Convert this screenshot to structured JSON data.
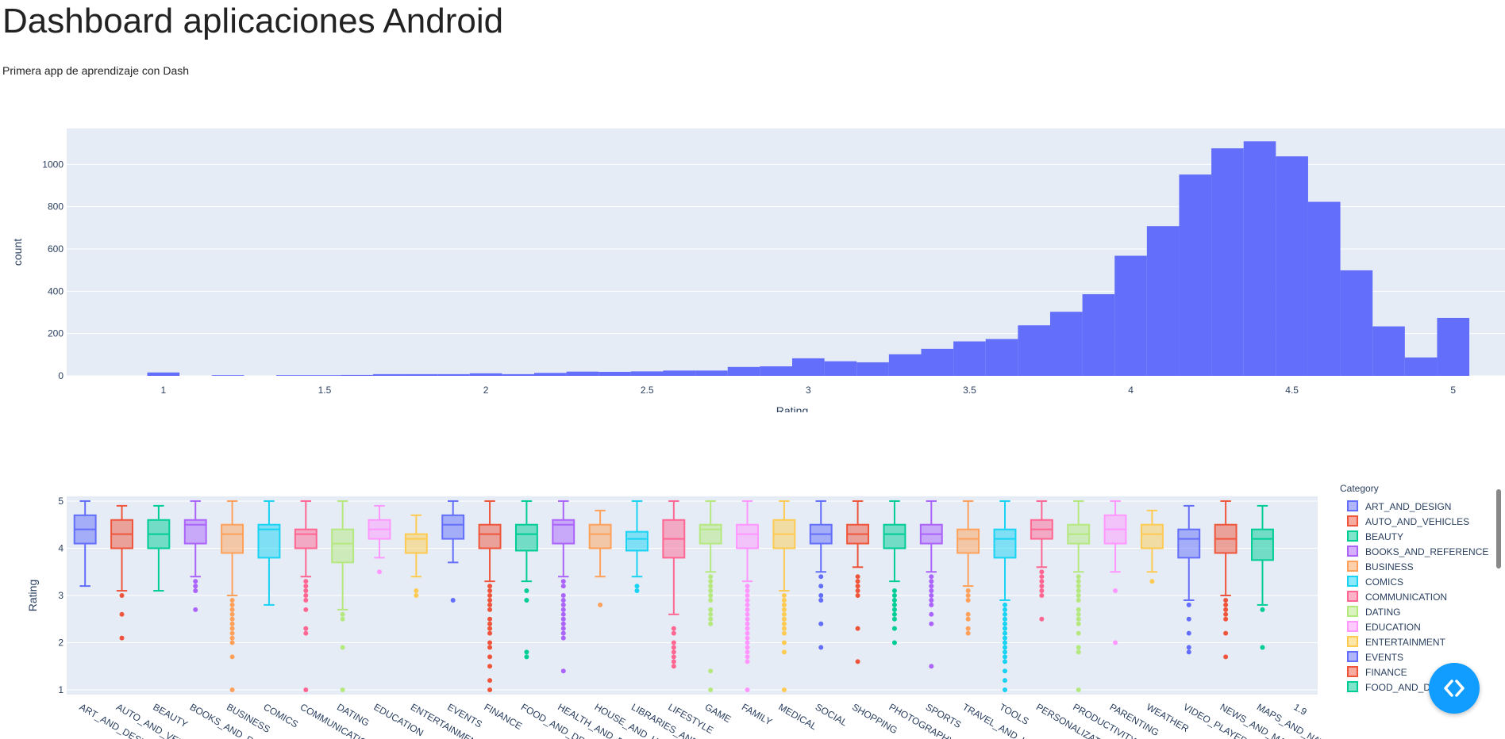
{
  "page": {
    "title": "Dashboard aplicaciones Android",
    "subtitle": "Primera app de aprendizaje con Dash"
  },
  "colors": {
    "hist_bar": "#636efa",
    "plot_bg": "#e5ecf6",
    "grid": "#ffffff",
    "axis_text": "#2a3f5f",
    "toggle_button": "#119dff"
  },
  "chart_data": [
    {
      "type": "bar",
      "subtype": "histogram",
      "title": "",
      "xlabel": "Rating",
      "ylabel": "count",
      "xlim": [
        0.7,
        5.2
      ],
      "ylim": [
        0,
        1170
      ],
      "xticks": [
        "1",
        "1.5",
        "2",
        "2.5",
        "3",
        "3.5",
        "4",
        "4.5",
        "5"
      ],
      "yticks": [
        "0",
        "200",
        "400",
        "600",
        "800",
        "1000"
      ],
      "bin_width": 0.1,
      "bins": [
        {
          "x0": 0.95,
          "x1": 1.05,
          "count": 16
        },
        {
          "x0": 1.15,
          "x1": 1.25,
          "count": 3
        },
        {
          "x0": 1.35,
          "x1": 1.45,
          "count": 3
        },
        {
          "x0": 1.45,
          "x1": 1.55,
          "count": 3
        },
        {
          "x0": 1.55,
          "x1": 1.65,
          "count": 4
        },
        {
          "x0": 1.65,
          "x1": 1.75,
          "count": 8
        },
        {
          "x0": 1.75,
          "x1": 1.85,
          "count": 8
        },
        {
          "x0": 1.85,
          "x1": 1.95,
          "count": 8
        },
        {
          "x0": 1.95,
          "x1": 2.05,
          "count": 12
        },
        {
          "x0": 2.05,
          "x1": 2.15,
          "count": 8
        },
        {
          "x0": 2.15,
          "x1": 2.25,
          "count": 14
        },
        {
          "x0": 2.25,
          "x1": 2.35,
          "count": 20
        },
        {
          "x0": 2.35,
          "x1": 2.45,
          "count": 19
        },
        {
          "x0": 2.45,
          "x1": 2.55,
          "count": 21
        },
        {
          "x0": 2.55,
          "x1": 2.65,
          "count": 25
        },
        {
          "x0": 2.65,
          "x1": 2.75,
          "count": 25
        },
        {
          "x0": 2.75,
          "x1": 2.85,
          "count": 42
        },
        {
          "x0": 2.85,
          "x1": 2.95,
          "count": 45
        },
        {
          "x0": 2.95,
          "x1": 3.05,
          "count": 83
        },
        {
          "x0": 3.05,
          "x1": 3.15,
          "count": 69
        },
        {
          "x0": 3.15,
          "x1": 3.25,
          "count": 64
        },
        {
          "x0": 3.25,
          "x1": 3.35,
          "count": 102
        },
        {
          "x0": 3.35,
          "x1": 3.45,
          "count": 128
        },
        {
          "x0": 3.45,
          "x1": 3.55,
          "count": 163
        },
        {
          "x0": 3.55,
          "x1": 3.65,
          "count": 174
        },
        {
          "x0": 3.65,
          "x1": 3.75,
          "count": 239
        },
        {
          "x0": 3.75,
          "x1": 3.85,
          "count": 303
        },
        {
          "x0": 3.85,
          "x1": 3.95,
          "count": 386
        },
        {
          "x0": 3.95,
          "x1": 4.05,
          "count": 568
        },
        {
          "x0": 4.05,
          "x1": 4.15,
          "count": 708
        },
        {
          "x0": 4.15,
          "x1": 4.25,
          "count": 952
        },
        {
          "x0": 4.25,
          "x1": 4.35,
          "count": 1076
        },
        {
          "x0": 4.35,
          "x1": 4.45,
          "count": 1109
        },
        {
          "x0": 4.45,
          "x1": 4.55,
          "count": 1038
        },
        {
          "x0": 4.55,
          "x1": 4.65,
          "count": 823
        },
        {
          "x0": 4.65,
          "x1": 4.75,
          "count": 499
        },
        {
          "x0": 4.75,
          "x1": 4.85,
          "count": 234
        },
        {
          "x0": 4.85,
          "x1": 4.95,
          "count": 87
        },
        {
          "x0": 4.95,
          "x1": 5.05,
          "count": 274
        }
      ]
    },
    {
      "type": "box",
      "title": "",
      "xlabel": "",
      "ylabel": "Rating",
      "ylim": [
        0.9,
        5.1
      ],
      "yticks": [
        "1",
        "2",
        "3",
        "4",
        "5"
      ],
      "legend_title": "Category",
      "legend_position": "right",
      "categories": [
        {
          "name": "ART_AND_DESIGN",
          "label": "ART_AND_DESIG",
          "color": "#636efa",
          "q1": 4.1,
          "median": 4.4,
          "q3": 4.7,
          "lo": 3.2,
          "hi": 5.0,
          "outliers": []
        },
        {
          "name": "AUTO_AND_VEHICLES",
          "label": "AUTO_AND_VEHIC",
          "color": "#ef553b",
          "q1": 4.0,
          "median": 4.3,
          "q3": 4.6,
          "lo": 3.1,
          "hi": 4.9,
          "outliers": [
            3.0,
            2.6,
            2.1
          ]
        },
        {
          "name": "BEAUTY",
          "label": "BEAUTY",
          "color": "#00cc96",
          "q1": 4.0,
          "median": 4.3,
          "q3": 4.6,
          "lo": 3.1,
          "hi": 4.9,
          "outliers": []
        },
        {
          "name": "BOOKS_AND_REFERENCE",
          "label": "BOOKS_AND_REF",
          "color": "#ab63fa",
          "q1": 4.1,
          "median": 4.5,
          "q3": 4.6,
          "lo": 3.4,
          "hi": 5.0,
          "outliers": [
            3.3,
            3.2,
            3.1,
            2.7
          ]
        },
        {
          "name": "BUSINESS",
          "label": "BUSINESS",
          "color": "#ffa15a",
          "q1": 3.9,
          "median": 4.3,
          "q3": 4.5,
          "lo": 3.0,
          "hi": 5.0,
          "outliers": [
            2.9,
            2.8,
            2.7,
            2.6,
            2.5,
            2.4,
            2.3,
            2.2,
            2.1,
            2.0,
            1.7,
            1.0
          ]
        },
        {
          "name": "COMICS",
          "label": "COMICS",
          "color": "#19d3f3",
          "q1": 3.8,
          "median": 4.4,
          "q3": 4.5,
          "lo": 2.8,
          "hi": 5.0,
          "outliers": []
        },
        {
          "name": "COMMUNICATION",
          "label": "COMMUNICATION",
          "color": "#ff6692",
          "q1": 4.0,
          "median": 4.3,
          "q3": 4.4,
          "lo": 3.4,
          "hi": 5.0,
          "outliers": [
            3.3,
            3.2,
            3.1,
            3.0,
            2.9,
            2.7,
            2.3,
            2.2,
            1.0
          ]
        },
        {
          "name": "DATING",
          "label": "DATING",
          "color": "#b6e880",
          "q1": 3.7,
          "median": 4.1,
          "q3": 4.4,
          "lo": 2.7,
          "hi": 5.0,
          "outliers": [
            2.6,
            2.5,
            1.9,
            1.0
          ]
        },
        {
          "name": "EDUCATION",
          "label": "EDUCATION",
          "color": "#ff97ff",
          "q1": 4.2,
          "median": 4.4,
          "q3": 4.6,
          "lo": 3.8,
          "hi": 4.9,
          "outliers": [
            3.5
          ]
        },
        {
          "name": "ENTERTAINMENT",
          "label": "ENTERTAINMENT",
          "color": "#fecb52",
          "q1": 3.9,
          "median": 4.2,
          "q3": 4.3,
          "lo": 3.4,
          "hi": 4.7,
          "outliers": [
            3.1,
            3.0
          ]
        },
        {
          "name": "EVENTS",
          "label": "EVENTS",
          "color": "#636efa",
          "q1": 4.2,
          "median": 4.5,
          "q3": 4.7,
          "lo": 3.7,
          "hi": 5.0,
          "outliers": [
            2.9
          ]
        },
        {
          "name": "FINANCE",
          "label": "FINANCE",
          "color": "#ef553b",
          "q1": 4.0,
          "median": 4.3,
          "q3": 4.5,
          "lo": 3.3,
          "hi": 5.0,
          "outliers": [
            3.2,
            3.1,
            3.0,
            2.9,
            2.8,
            2.7,
            2.5,
            2.4,
            2.3,
            2.2,
            2.0,
            1.9,
            1.7,
            1.5,
            1.2,
            1.0
          ]
        },
        {
          "name": "FOOD_AND_DRINK",
          "label": "FOOD_AND_DRIN",
          "color": "#00cc96",
          "q1": 3.95,
          "median": 4.3,
          "q3": 4.5,
          "lo": 3.3,
          "hi": 5.0,
          "outliers": [
            3.1,
            2.9,
            1.8,
            1.7
          ]
        },
        {
          "name": "HEALTH_AND_FITNESS",
          "label": "HEALTH_AND_FIT",
          "color": "#ab63fa",
          "q1": 4.1,
          "median": 4.5,
          "q3": 4.6,
          "lo": 3.4,
          "hi": 5.0,
          "outliers": [
            3.3,
            3.2,
            3.0,
            2.9,
            2.8,
            2.7,
            2.6,
            2.5,
            2.4,
            2.3,
            2.2,
            2.1,
            1.4
          ]
        },
        {
          "name": "HOUSE_AND_HOME",
          "label": "HOUSE_AND_HOM",
          "color": "#ffa15a",
          "q1": 4.0,
          "median": 4.3,
          "q3": 4.5,
          "lo": 3.4,
          "hi": 4.8,
          "outliers": [
            2.8
          ]
        },
        {
          "name": "LIBRARIES_AND_DEMO",
          "label": "LIBRARIES_AND_",
          "color": "#19d3f3",
          "q1": 3.95,
          "median": 4.2,
          "q3": 4.35,
          "lo": 3.4,
          "hi": 5.0,
          "outliers": [
            3.2,
            3.1
          ]
        },
        {
          "name": "LIFESTYLE",
          "label": "LIFESTYLE",
          "color": "#ff6692",
          "q1": 3.8,
          "median": 4.2,
          "q3": 4.6,
          "lo": 2.6,
          "hi": 5.0,
          "outliers": [
            2.3,
            2.2,
            2.0,
            1.9,
            1.8,
            1.7,
            1.6,
            1.5
          ]
        },
        {
          "name": "GAME",
          "label": "GAME",
          "color": "#b6e880",
          "q1": 4.1,
          "median": 4.4,
          "q3": 4.5,
          "lo": 3.5,
          "hi": 5.0,
          "outliers": [
            3.4,
            3.3,
            3.2,
            3.1,
            3.0,
            2.9,
            2.7,
            2.6,
            2.5,
            2.4,
            1.4,
            1.0
          ]
        },
        {
          "name": "FAMILY",
          "label": "FAMILY",
          "color": "#ff97ff",
          "q1": 4.0,
          "median": 4.3,
          "q3": 4.5,
          "lo": 3.3,
          "hi": 5.0,
          "outliers": [
            3.2,
            3.1,
            3.0,
            2.9,
            2.8,
            2.7,
            2.6,
            2.5,
            2.4,
            2.3,
            2.2,
            2.1,
            2.0,
            1.9,
            1.8,
            1.7,
            1.6,
            1.0
          ]
        },
        {
          "name": "MEDICAL",
          "label": "MEDICAL",
          "color": "#fecb52",
          "q1": 4.0,
          "median": 4.3,
          "q3": 4.6,
          "lo": 3.1,
          "hi": 5.0,
          "outliers": [
            3.0,
            2.9,
            2.8,
            2.7,
            2.6,
            2.5,
            2.4,
            2.3,
            2.2,
            2.0,
            1.8,
            1.0
          ]
        },
        {
          "name": "SOCIAL",
          "label": "SOCIAL",
          "color": "#636efa",
          "q1": 4.1,
          "median": 4.3,
          "q3": 4.5,
          "lo": 3.5,
          "hi": 5.0,
          "outliers": [
            3.4,
            3.2,
            3.0,
            2.9,
            2.4,
            1.9
          ]
        },
        {
          "name": "SHOPPING",
          "label": "SHOPPING",
          "color": "#ef553b",
          "q1": 4.1,
          "median": 4.3,
          "q3": 4.5,
          "lo": 3.6,
          "hi": 5.0,
          "outliers": [
            3.4,
            3.3,
            3.2,
            3.1,
            3.0,
            2.3,
            1.6
          ]
        },
        {
          "name": "PHOTOGRAPHY",
          "label": "PHOTOGRAPHY",
          "color": "#00cc96",
          "q1": 4.0,
          "median": 4.3,
          "q3": 4.5,
          "lo": 3.3,
          "hi": 5.0,
          "outliers": [
            3.1,
            3.0,
            2.9,
            2.8,
            2.7,
            2.6,
            2.5,
            2.3,
            2.0
          ]
        },
        {
          "name": "SPORTS",
          "label": "SPORTS",
          "color": "#ab63fa",
          "q1": 4.1,
          "median": 4.3,
          "q3": 4.5,
          "lo": 3.5,
          "hi": 5.0,
          "outliers": [
            3.4,
            3.3,
            3.2,
            3.1,
            3.0,
            2.9,
            2.8,
            2.6,
            2.4,
            1.5
          ]
        },
        {
          "name": "TRAVEL_AND_LOCAL",
          "label": "TRAVEL_AND_LO",
          "color": "#ffa15a",
          "q1": 3.9,
          "median": 4.2,
          "q3": 4.4,
          "lo": 3.2,
          "hi": 5.0,
          "outliers": [
            3.1,
            3.0,
            2.9,
            2.6,
            2.5,
            2.3,
            2.2
          ]
        },
        {
          "name": "TOOLS",
          "label": "TOOLS",
          "color": "#19d3f3",
          "q1": 3.8,
          "median": 4.2,
          "q3": 4.4,
          "lo": 2.9,
          "hi": 5.0,
          "outliers": [
            2.8,
            2.7,
            2.6,
            2.5,
            2.4,
            2.3,
            2.2,
            2.1,
            2.0,
            1.9,
            1.8,
            1.7,
            1.6,
            1.4,
            1.2,
            1.0
          ]
        },
        {
          "name": "PERSONALIZATION",
          "label": "PERSONALIZATIO",
          "color": "#ff6692",
          "q1": 4.2,
          "median": 4.4,
          "q3": 4.6,
          "lo": 3.6,
          "hi": 5.0,
          "outliers": [
            3.5,
            3.4,
            3.3,
            3.2,
            3.1,
            3.0,
            2.5
          ]
        },
        {
          "name": "PRODUCTIVITY",
          "label": "PRODUCTIVITY",
          "color": "#b6e880",
          "q1": 4.1,
          "median": 4.3,
          "q3": 4.5,
          "lo": 3.5,
          "hi": 5.0,
          "outliers": [
            3.4,
            3.3,
            3.2,
            3.1,
            3.0,
            2.9,
            2.7,
            2.6,
            2.5,
            2.4,
            2.2,
            1.9,
            1.8,
            1.0
          ]
        },
        {
          "name": "PARENTING",
          "label": "PARENTING",
          "color": "#ff97ff",
          "q1": 4.1,
          "median": 4.4,
          "q3": 4.7,
          "lo": 3.5,
          "hi": 5.0,
          "outliers": [
            3.1,
            2.0
          ]
        },
        {
          "name": "WEATHER",
          "label": "WEATHER",
          "color": "#fecb52",
          "q1": 4.0,
          "median": 4.3,
          "q3": 4.5,
          "lo": 3.5,
          "hi": 4.8,
          "outliers": [
            3.3
          ]
        },
        {
          "name": "VIDEO_PLAYERS",
          "label": "VIDEO_PLAYERS",
          "color": "#636efa",
          "q1": 3.8,
          "median": 4.2,
          "q3": 4.4,
          "lo": 2.9,
          "hi": 4.9,
          "outliers": [
            2.8,
            2.5,
            2.2,
            1.9,
            1.8
          ]
        },
        {
          "name": "NEWS_AND_MAGAZINES",
          "label": "NEWS_AND_MAG",
          "color": "#ef553b",
          "q1": 3.9,
          "median": 4.2,
          "q3": 4.5,
          "lo": 3.0,
          "hi": 5.0,
          "outliers": [
            2.9,
            2.8,
            2.7,
            2.6,
            2.5,
            2.2,
            1.7
          ]
        },
        {
          "name": "MAPS_AND_NAVIGATION",
          "label": "MAPS_AND_NAVI",
          "color": "#00cc96",
          "q1": 3.75,
          "median": 4.2,
          "q3": 4.4,
          "lo": 2.8,
          "hi": 4.9,
          "outliers": [
            2.7,
            1.9
          ]
        },
        {
          "name": "1.9",
          "label": "1.9",
          "color": "#ab63fa",
          "q1": null,
          "median": null,
          "q3": null,
          "lo": null,
          "hi": null,
          "outliers": []
        }
      ],
      "legend_visible": [
        "ART_AND_DESIGN",
        "AUTO_AND_VEHICLES",
        "BEAUTY",
        "BOOKS_AND_REFERENCE",
        "BUSINESS",
        "COMICS",
        "COMMUNICATION",
        "DATING",
        "EDUCATION",
        "ENTERTAINMENT",
        "EVENTS",
        "FINANCE",
        "FOOD_AND_DRINK"
      ]
    }
  ]
}
